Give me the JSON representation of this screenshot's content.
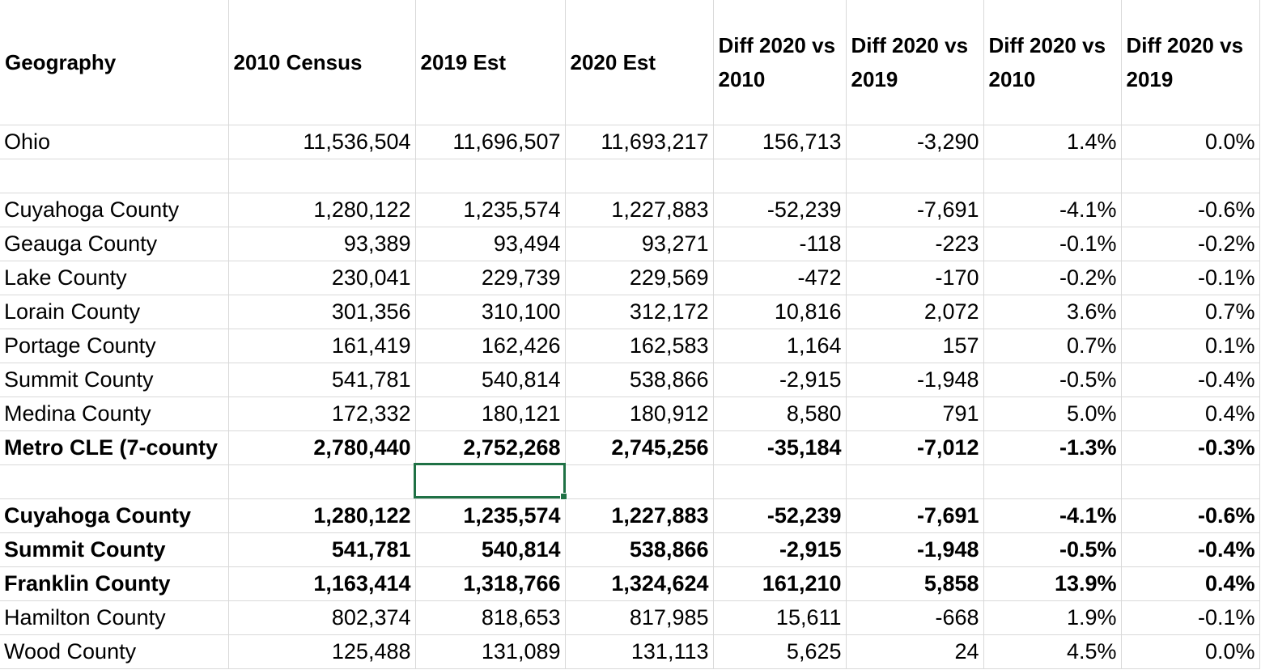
{
  "headers": [
    "Geography",
    "2010 Census",
    "2019 Est",
    "2020 Est",
    "Diff 2020 vs 2010",
    "Diff 2020 vs 2019",
    "Diff 2020 vs 2010",
    "Diff 2020 vs 2019"
  ],
  "rows": [
    {
      "geo": "Ohio",
      "c2010": "11,536,504",
      "e2019": "11,696,507",
      "e2020": "11,693,217",
      "d2010": "156,713",
      "d2019": "-3,290",
      "p2010": "1.4%",
      "p2019": "0.0%"
    },
    {
      "geo": "Cuyahoga County",
      "c2010": "1,280,122",
      "e2019": "1,235,574",
      "e2020": "1,227,883",
      "d2010": "-52,239",
      "d2019": "-7,691",
      "p2010": "-4.1%",
      "p2019": "-0.6%"
    },
    {
      "geo": "Geauga County",
      "c2010": "93,389",
      "e2019": "93,494",
      "e2020": "93,271",
      "d2010": "-118",
      "d2019": "-223",
      "p2010": "-0.1%",
      "p2019": "-0.2%"
    },
    {
      "geo": "Lake County",
      "c2010": "230,041",
      "e2019": "229,739",
      "e2020": "229,569",
      "d2010": "-472",
      "d2019": "-170",
      "p2010": "-0.2%",
      "p2019": "-0.1%"
    },
    {
      "geo": "Lorain County",
      "c2010": "301,356",
      "e2019": "310,100",
      "e2020": "312,172",
      "d2010": "10,816",
      "d2019": "2,072",
      "p2010": "3.6%",
      "p2019": "0.7%"
    },
    {
      "geo": "Portage County",
      "c2010": "161,419",
      "e2019": "162,426",
      "e2020": "162,583",
      "d2010": "1,164",
      "d2019": "157",
      "p2010": "0.7%",
      "p2019": "0.1%"
    },
    {
      "geo": "Summit County",
      "c2010": "541,781",
      "e2019": "540,814",
      "e2020": "538,866",
      "d2010": "-2,915",
      "d2019": "-1,948",
      "p2010": "-0.5%",
      "p2019": "-0.4%"
    },
    {
      "geo": "Medina County",
      "c2010": "172,332",
      "e2019": "180,121",
      "e2020": "180,912",
      "d2010": "8,580",
      "d2019": "791",
      "p2010": "5.0%",
      "p2019": "0.4%"
    },
    {
      "geo": "Metro CLE (7-county",
      "c2010": "2,780,440",
      "e2019": "2,752,268",
      "e2020": "2,745,256",
      "d2010": "-35,184",
      "d2019": "-7,012",
      "p2010": "-1.3%",
      "p2019": "-0.3%"
    },
    {
      "geo": "Cuyahoga County",
      "c2010": "1,280,122",
      "e2019": "1,235,574",
      "e2020": "1,227,883",
      "d2010": "-52,239",
      "d2019": "-7,691",
      "p2010": "-4.1%",
      "p2019": "-0.6%"
    },
    {
      "geo": "Summit County",
      "c2010": "541,781",
      "e2019": "540,814",
      "e2020": "538,866",
      "d2010": "-2,915",
      "d2019": "-1,948",
      "p2010": "-0.5%",
      "p2019": "-0.4%"
    },
    {
      "geo": "Franklin County",
      "c2010": "1,163,414",
      "e2019": "1,318,766",
      "e2020": "1,324,624",
      "d2010": "161,210",
      "d2019": "5,858",
      "p2010": "13.9%",
      "p2019": "0.4%"
    },
    {
      "geo": "Hamilton County",
      "c2010": "802,374",
      "e2019": "818,653",
      "e2020": "817,985",
      "d2010": "15,611",
      "d2019": "-668",
      "p2010": "1.9%",
      "p2019": "-0.1%"
    },
    {
      "geo": "Wood County",
      "c2010": "125,488",
      "e2019": "131,089",
      "e2020": "131,113",
      "d2010": "5,625",
      "d2019": "24",
      "p2010": "4.5%",
      "p2019": "0.0%"
    }
  ],
  "colors": {
    "selection": "#1f7145",
    "gridline": "#d9d9d9"
  }
}
